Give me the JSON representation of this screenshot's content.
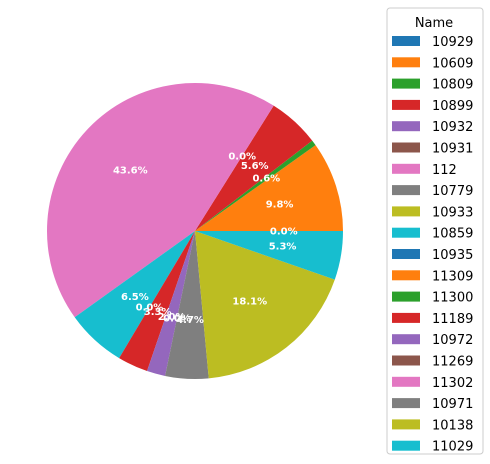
{
  "chart_data": {
    "type": "pie",
    "legend_title": "Name",
    "legend_placement": "right",
    "slices": [
      {
        "name": "10929",
        "value": 0.0,
        "label": "0.0%",
        "color": "#1f77b4"
      },
      {
        "name": "10609",
        "value": 9.8,
        "label": "9.8%",
        "color": "#ff7f0e"
      },
      {
        "name": "10809",
        "value": 0.6,
        "label": "0.6%",
        "color": "#2ca02c"
      },
      {
        "name": "10899",
        "value": 5.6,
        "label": "5.6%",
        "color": "#d62728"
      },
      {
        "name": "10932",
        "value": 0.0,
        "label": "0.0%",
        "color": "#9467bd"
      },
      {
        "name": "10931",
        "value": 0.0,
        "label": "",
        "color": "#8c564b"
      },
      {
        "name": "112",
        "value": 43.6,
        "label": "43.6%",
        "color": "#e377c2"
      },
      {
        "name": "10779",
        "value": 0.0,
        "label": "",
        "color": "#7f7f7f"
      },
      {
        "name": "10933",
        "value": 0.0,
        "label": "",
        "color": "#bcbd22"
      },
      {
        "name": "10859",
        "value": 6.5,
        "label": "6.5%",
        "color": "#17becf"
      },
      {
        "name": "10935",
        "value": 0.0,
        "label": "0.0%",
        "color": "#1f77b4"
      },
      {
        "name": "11309",
        "value": 0.0,
        "label": "",
        "color": "#ff7f0e"
      },
      {
        "name": "11300",
        "value": 0.0,
        "label": "",
        "color": "#2ca02c"
      },
      {
        "name": "11189",
        "value": 3.3,
        "label": "3.3%",
        "color": "#d62728"
      },
      {
        "name": "10972",
        "value": 2.0,
        "label": "2.0%",
        "color": "#9467bd"
      },
      {
        "name": "11269",
        "value": 0.0,
        "label": "0.0%",
        "color": "#8c564b"
      },
      {
        "name": "11302",
        "value": 0.0,
        "label": "",
        "color": "#e377c2"
      },
      {
        "name": "10971",
        "value": 4.7,
        "label": "4.7%",
        "color": "#7f7f7f"
      },
      {
        "name": "10138",
        "value": 18.1,
        "label": "18.1%",
        "color": "#bcbd22"
      },
      {
        "name": "11029",
        "value": 5.3,
        "label": "5.3%",
        "color": "#17becf"
      }
    ]
  }
}
